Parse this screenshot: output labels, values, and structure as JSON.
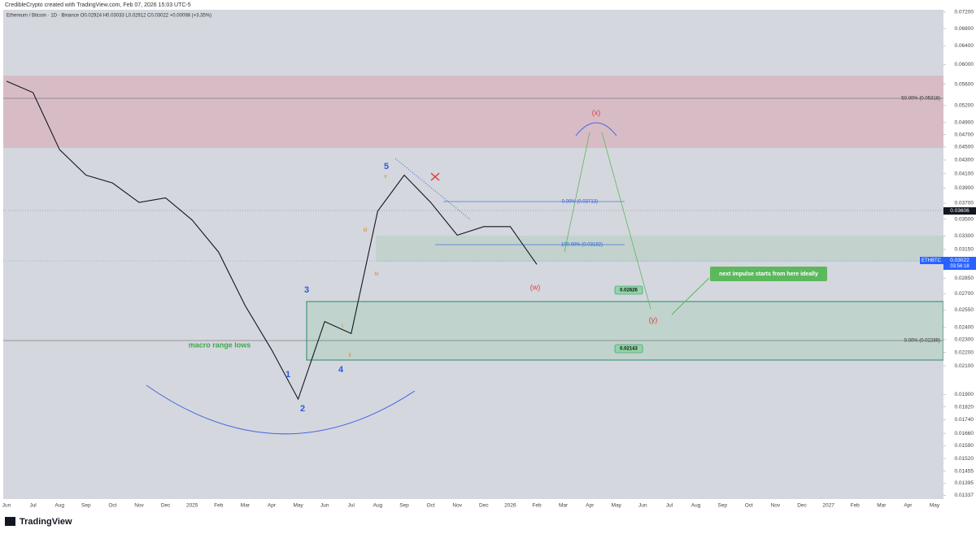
{
  "chart_data": {
    "type": "line",
    "header": "CredibleCrypto created with TradingView.com, Feb 07, 2026 15:03 UTC-5",
    "legend_text": "Ethereum / Bitcoin · 1D · Binance  O0.02924  H0.03033  L0.02912  C0.03022  +0.00098 (+3.35%)",
    "brand": "TradingView",
    "log_scale": true,
    "categories": [
      "Jun",
      "Jul",
      "Aug",
      "Sep",
      "Oct",
      "Nov",
      "Dec",
      "2025",
      "Feb",
      "Mar",
      "Apr",
      "May",
      "Jun",
      "Jul",
      "Aug",
      "Sep",
      "Oct",
      "Nov",
      "Dec",
      "2026",
      "Feb",
      "Mar",
      "Apr",
      "May",
      "Jun",
      "Jul",
      "Aug",
      "Sep",
      "Oct",
      "Nov",
      "Dec",
      "2027",
      "Feb",
      "Mar",
      "Apr",
      "May"
    ],
    "series": [
      {
        "name": "ETHBTC",
        "color": "#131722",
        "values": [
          0.0566,
          0.0544,
          0.0446,
          0.0408,
          0.0397,
          0.0371,
          0.0377,
          0.0349,
          0.0312,
          0.0259,
          0.0222,
          0.0187,
          0.0245,
          0.0235,
          0.036,
          0.0408,
          0.0371,
          0.0331,
          0.0341,
          0.0341,
          0.0299,
          null,
          null,
          null,
          null,
          null,
          null,
          null,
          null,
          null,
          null,
          null,
          null,
          null,
          null,
          null
        ]
      }
    ],
    "ylim": [
      0.0132,
      0.0726
    ],
    "yticks": [
      {
        "value": 0.072,
        "label": "0.07200"
      },
      {
        "value": 0.068,
        "label": "0.06800"
      },
      {
        "value": 0.064,
        "label": "0.06400"
      },
      {
        "value": 0.06,
        "label": "0.06000"
      },
      {
        "value": 0.056,
        "label": "0.05600"
      },
      {
        "value": 0.052,
        "label": "0.05200"
      },
      {
        "value": 0.049,
        "label": "0.04900"
      },
      {
        "value": 0.047,
        "label": "0.04700"
      },
      {
        "value": 0.045,
        "label": "0.04500"
      },
      {
        "value": 0.043,
        "label": "0.04300"
      },
      {
        "value": 0.041,
        "label": "0.04100"
      },
      {
        "value": 0.039,
        "label": "0.03900"
      },
      {
        "value": 0.037,
        "label": "0.03700"
      },
      {
        "value": 0.035,
        "label": "0.03500"
      },
      {
        "value": 0.033,
        "label": "0.03300"
      },
      {
        "value": 0.0315,
        "label": "0.03150"
      },
      {
        "value": 0.0285,
        "label": "0.02850"
      },
      {
        "value": 0.027,
        "label": "0.02700"
      },
      {
        "value": 0.0255,
        "label": "0.02550"
      },
      {
        "value": 0.024,
        "label": "0.02400"
      },
      {
        "value": 0.023,
        "label": "0.02300"
      },
      {
        "value": 0.022,
        "label": "0.02200"
      },
      {
        "value": 0.021,
        "label": "0.02100"
      },
      {
        "value": 0.019,
        "label": "0.01900"
      },
      {
        "value": 0.0182,
        "label": "0.01820"
      },
      {
        "value": 0.0174,
        "label": "0.01740"
      },
      {
        "value": 0.0166,
        "label": "0.01660"
      },
      {
        "value": 0.0159,
        "label": "0.01590"
      },
      {
        "value": 0.0152,
        "label": "0.01520"
      },
      {
        "value": 0.01455,
        "label": "0.01455"
      },
      {
        "value": 0.01395,
        "label": "0.01395"
      },
      {
        "value": 0.01337,
        "label": "0.01337"
      }
    ],
    "price_tags": [
      "0.03606",
      "ETHBTC",
      "0.03022",
      "03:56:18"
    ],
    "annotations": [
      "50.00% (0.05318)",
      "0.00% (0.03713)",
      "100.00% (0.03192)",
      "0.00% (0.02289)",
      "0.02626",
      "0.02143",
      "next impulse starts from here ideally",
      "macro range lows",
      "5",
      "3",
      "4",
      "1",
      "2",
      "(x)",
      "(w)",
      "(y)",
      "i",
      "ii",
      "iii",
      "iv",
      "v"
    ]
  }
}
